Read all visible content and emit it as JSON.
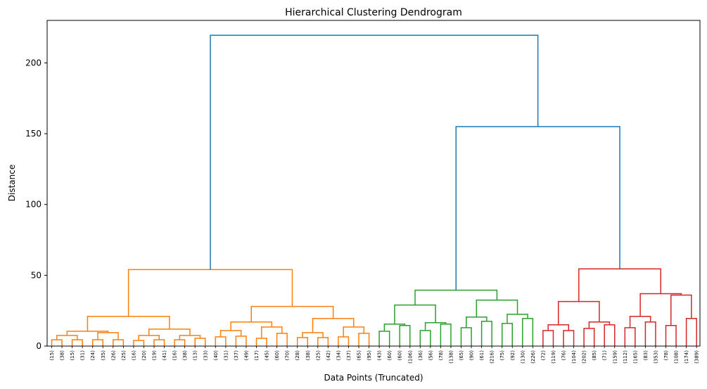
{
  "chart_data": {
    "type": "dendrogram",
    "title": "Hierarchical Clustering Dendrogram",
    "xlabel": "Data Points (Truncated)",
    "ylabel": "Distance",
    "ylim": [
      0,
      230
    ],
    "yticks": [
      0,
      50,
      100,
      150,
      200
    ],
    "colors": {
      "orange": "#ff7f0e",
      "green": "#2ca02c",
      "red": "#d62728",
      "blue": "#1f77b4"
    },
    "leaf_labels": [
      "(15)",
      "(38)",
      "(15)",
      "(31)",
      "(24)",
      "(35)",
      "(26)",
      "(25)",
      "(16)",
      "(20)",
      "(19)",
      "(41)",
      "(16)",
      "(38)",
      "(13)",
      "(33)",
      "(40)",
      "(31)",
      "(37)",
      "(49)",
      "(17)",
      "(45)",
      "(60)",
      "(70)",
      "(28)",
      "(38)",
      "(25)",
      "(42)",
      "(34)",
      "(37)",
      "(65)",
      "(95)",
      "(43)",
      "(60)",
      "(60)",
      "(106)",
      "(36)",
      "(56)",
      "(78)",
      "(138)",
      "(65)",
      "(90)",
      "(61)",
      "(216)",
      "(75)",
      "(92)",
      "(130)",
      "(226)",
      "(72)",
      "(119)",
      "(76)",
      "(104)",
      "(202)",
      "(85)",
      "(71)",
      "(159)",
      "(112)",
      "(165)",
      "(83)",
      "(353)",
      "(78)",
      "(108)",
      "(174)",
      "(389)"
    ],
    "links": [
      {
        "a": "L0",
        "b": "L1",
        "h": 4.5,
        "c": "orange"
      },
      {
        "a": "L2",
        "b": "L3",
        "h": 4.5,
        "c": "orange"
      },
      {
        "a": "N0",
        "b": "N1",
        "h": 7.5,
        "c": "orange"
      },
      {
        "a": "L4",
        "b": "L5",
        "h": 4.5,
        "c": "orange"
      },
      {
        "a": "L6",
        "b": "L7",
        "h": 4.5,
        "c": "orange"
      },
      {
        "a": "N3",
        "b": "N4",
        "h": 9.5,
        "c": "orange"
      },
      {
        "a": "N2",
        "b": "N5",
        "h": 10.5,
        "c": "orange"
      },
      {
        "a": "L8",
        "b": "L9",
        "h": 4,
        "c": "orange"
      },
      {
        "a": "L10",
        "b": "L11",
        "h": 4.5,
        "c": "orange"
      },
      {
        "a": "N7",
        "b": "N8",
        "h": 7.5,
        "c": "orange"
      },
      {
        "a": "L12",
        "b": "L13",
        "h": 4.5,
        "c": "orange"
      },
      {
        "a": "L14",
        "b": "L15",
        "h": 5.5,
        "c": "orange"
      },
      {
        "a": "N10",
        "b": "N11",
        "h": 7.5,
        "c": "orange"
      },
      {
        "a": "N9",
        "b": "N12",
        "h": 12,
        "c": "orange"
      },
      {
        "a": "N6",
        "b": "N13",
        "h": 21,
        "c": "orange"
      },
      {
        "a": "L16",
        "b": "L17",
        "h": 6.5,
        "c": "orange"
      },
      {
        "a": "L18",
        "b": "L19",
        "h": 7,
        "c": "orange"
      },
      {
        "a": "N15",
        "b": "N16",
        "h": 11,
        "c": "orange"
      },
      {
        "a": "L20",
        "b": "L21",
        "h": 5.5,
        "c": "orange"
      },
      {
        "a": "L22",
        "b": "L23",
        "h": 9,
        "c": "orange"
      },
      {
        "a": "N18",
        "b": "N19",
        "h": 13.5,
        "c": "orange"
      },
      {
        "a": "N17",
        "b": "N20",
        "h": 17,
        "c": "orange"
      },
      {
        "a": "L24",
        "b": "L25",
        "h": 6,
        "c": "orange"
      },
      {
        "a": "L26",
        "b": "L27",
        "h": 6,
        "c": "orange"
      },
      {
        "a": "N22",
        "b": "N23",
        "h": 9.5,
        "c": "orange"
      },
      {
        "a": "L28",
        "b": "L29",
        "h": 6.5,
        "c": "orange"
      },
      {
        "a": "L30",
        "b": "L31",
        "h": 9,
        "c": "orange"
      },
      {
        "a": "N25",
        "b": "N26",
        "h": 13.5,
        "c": "orange"
      },
      {
        "a": "N24",
        "b": "N27",
        "h": 19.5,
        "c": "orange"
      },
      {
        "a": "N21",
        "b": "N28",
        "h": 28,
        "c": "orange"
      },
      {
        "a": "N14",
        "b": "N29",
        "h": 54,
        "c": "orange"
      },
      {
        "a": "L32",
        "b": "L33",
        "h": 10.5,
        "c": "green"
      },
      {
        "a": "L34",
        "b": "L35",
        "h": 14.5,
        "c": "green"
      },
      {
        "a": "N31",
        "b": "N32",
        "h": 15.5,
        "c": "green"
      },
      {
        "a": "L36",
        "b": "L37",
        "h": 11,
        "c": "green"
      },
      {
        "a": "L38",
        "b": "L39",
        "h": 15.5,
        "c": "green"
      },
      {
        "a": "N34",
        "b": "N35",
        "h": 16.5,
        "c": "green"
      },
      {
        "a": "N33",
        "b": "N36",
        "h": 29,
        "c": "green"
      },
      {
        "a": "L40",
        "b": "L41",
        "h": 13,
        "c": "green"
      },
      {
        "a": "L42",
        "b": "L43",
        "h": 17.5,
        "c": "green"
      },
      {
        "a": "N38",
        "b": "N39",
        "h": 20.5,
        "c": "green"
      },
      {
        "a": "L44",
        "b": "L45",
        "h": 16,
        "c": "green"
      },
      {
        "a": "L46",
        "b": "L47",
        "h": 19.5,
        "c": "green"
      },
      {
        "a": "N41",
        "b": "N42",
        "h": 22.5,
        "c": "green"
      },
      {
        "a": "N40",
        "b": "N43",
        "h": 32.5,
        "c": "green"
      },
      {
        "a": "N37",
        "b": "N44",
        "h": 39.5,
        "c": "green"
      },
      {
        "a": "L48",
        "b": "L49",
        "h": 11,
        "c": "red"
      },
      {
        "a": "L50",
        "b": "L51",
        "h": 11,
        "c": "red"
      },
      {
        "a": "N46",
        "b": "N47",
        "h": 15,
        "c": "red"
      },
      {
        "a": "L52",
        "b": "L53",
        "h": 12.5,
        "c": "red"
      },
      {
        "a": "L54",
        "b": "L55",
        "h": 15,
        "c": "red"
      },
      {
        "a": "N49",
        "b": "N50",
        "h": 17,
        "c": "red"
      },
      {
        "a": "N48",
        "b": "N51",
        "h": 31.5,
        "c": "red"
      },
      {
        "a": "L56",
        "b": "L57",
        "h": 13,
        "c": "red"
      },
      {
        "a": "L58",
        "b": "L59",
        "h": 17,
        "c": "red"
      },
      {
        "a": "N53",
        "b": "N54",
        "h": 21,
        "c": "red"
      },
      {
        "a": "L60",
        "b": "L61",
        "h": 14.5,
        "c": "red"
      },
      {
        "a": "L62",
        "b": "L63",
        "h": 19.5,
        "c": "red"
      },
      {
        "a": "N56",
        "b": "N57",
        "h": 36,
        "c": "red"
      },
      {
        "a": "N55",
        "b": "N58",
        "h": 37,
        "c": "red"
      },
      {
        "a": "N52",
        "b": "N59",
        "h": 54.5,
        "c": "red"
      },
      {
        "a": "N45",
        "b": "N60",
        "h": 155,
        "c": "blue"
      },
      {
        "a": "N30",
        "b": "N61",
        "h": 219.5,
        "c": "blue"
      }
    ]
  }
}
